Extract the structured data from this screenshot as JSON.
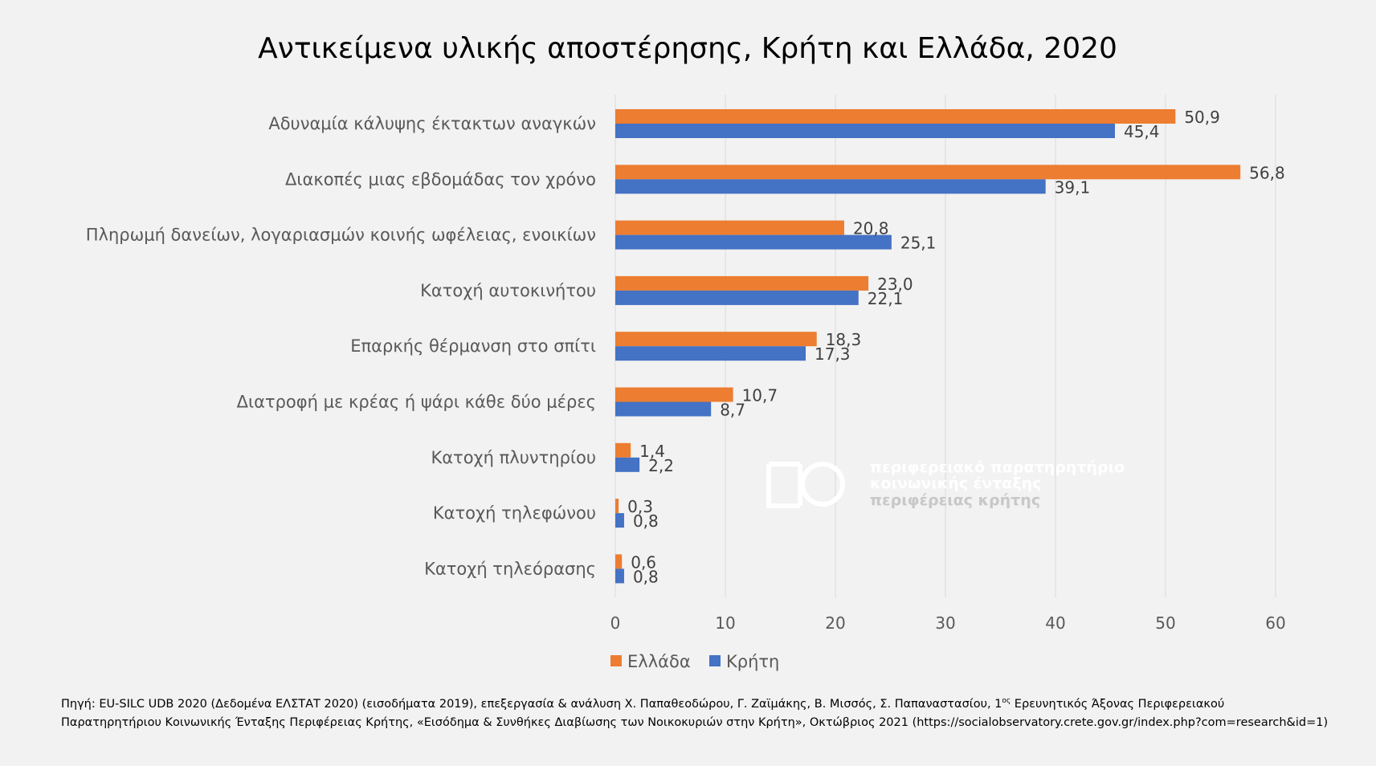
{
  "chart_data": {
    "type": "bar",
    "orientation": "horizontal",
    "title": "Αντικείμενα υλικής αποστέρησης, Κρήτη και Ελλάδα, 2020",
    "categories": [
      "Αδυναμία κάλυψης έκτακτων αναγκών",
      "Διακοπές μιας εβδομάδας τον χρόνο",
      "Πληρωμή δανείων, λογαριασμών κοινής ωφέλειας, ενοικίων",
      "Κατοχή αυτοκινήτου",
      "Επαρκής θέρμανση στο σπίτι",
      "Διατροφή με κρέας ή ψάρι κάθε δύο μέρες",
      "Κατοχή πλυντηρίου",
      "Κατοχή τηλεφώνου",
      "Κατοχή τηλεόρασης"
    ],
    "series": [
      {
        "name": "Ελλάδα",
        "color": "#ed7d31",
        "values": [
          50.9,
          56.8,
          20.8,
          23.0,
          18.3,
          10.7,
          1.4,
          0.3,
          0.6
        ],
        "labels": [
          "50,9",
          "56,8",
          "20,8",
          "23,0",
          "18,3",
          "10,7",
          "1,4",
          "0,3",
          "0,6"
        ]
      },
      {
        "name": "Κρήτη",
        "color": "#4472c4",
        "values": [
          45.4,
          39.1,
          25.1,
          22.1,
          17.3,
          8.7,
          2.2,
          0.8,
          0.8
        ],
        "labels": [
          "45,4",
          "39,1",
          "25,1",
          "22,1",
          "17,3",
          "8,7",
          "2,2",
          "0,8",
          "0,8"
        ]
      }
    ],
    "xlim": [
      0,
      60
    ],
    "xticks": [
      0,
      10,
      20,
      30,
      40,
      50,
      60
    ],
    "grid": "vertical",
    "legend": "bottom-center"
  },
  "watermark": {
    "line1": "περιφερειακό παρατηρητήριο",
    "line2": "κοινωνικής ένταξης",
    "line3": "περιφέρειας κρήτης"
  },
  "source": {
    "part1": "Πηγή: EU-SILC UDB 2020 (Δεδομένα ΕΛΣΤΑΤ 2020) (εισοδήματα 2019), επεξεργασία & ανάλυση Χ. Παπαθεοδώρου, Γ. Ζαϊμάκης, Β. Μισσός, Σ. Παπαναστασίου, 1",
    "sup": "ος",
    "part2": " Ερευνητικός Άξονας Περιφερειακού",
    "line2": "Παρατηρητήριου Κοινωνικής Ένταξης Περιφέρειας Κρήτης, «Εισόδημα & Συνθήκες Διαβίωσης των Νοικοκυριών στην Κρήτη», Οκτώβριος 2021 (https://socialobservatory.crete.gov.gr/index.php?com=research&id=1)"
  }
}
